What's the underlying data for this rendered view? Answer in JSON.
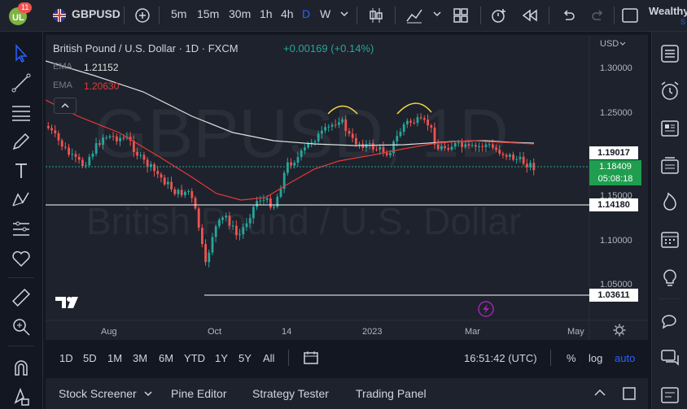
{
  "topbar": {
    "notification_count": "11",
    "symbol": "GBPUSD",
    "intervals": [
      "5m",
      "15m",
      "30m",
      "1h",
      "4h",
      "D",
      "W"
    ],
    "active_interval": "D",
    "account_label": "Wealthy",
    "account_sub": "S"
  },
  "chart": {
    "title": "British Pound / U.S. Dollar · 1D · FXCM",
    "change": "+0.00169 (+0.14%)",
    "ema1_label": "EMA",
    "ema1_value": "1.21152",
    "ema2_label": "EMA",
    "ema2_value": "1.20630",
    "watermark_symbol": "GBPUSD, 1D",
    "watermark_name": "British Pound / U.S. Dollar",
    "currency": "USD",
    "price_ticks": [
      "1.30000",
      "1.25000",
      "1.15000",
      "1.10000",
      "1.05000"
    ],
    "date_ticks": [
      "Aug",
      "Oct",
      "14",
      "2023",
      "Mar",
      "May"
    ],
    "level_labels": {
      "ema1": "1.19017",
      "current_price": "1.18409",
      "countdown": "05:08:18",
      "support_1": "1.14180",
      "support_2": "1.03611"
    },
    "colors": {
      "up": "#26a69a",
      "down": "#ef5350",
      "ema_fast": "#e0e0e0",
      "ema_slow": "#e53935",
      "current": "#1e9e4e",
      "annotation": "#f5d742"
    }
  },
  "rangebar": {
    "ranges": [
      "1D",
      "5D",
      "1M",
      "3M",
      "6M",
      "YTD",
      "1Y",
      "5Y",
      "All"
    ],
    "clock": "16:51:42 (UTC)",
    "percent": "%",
    "log": "log",
    "auto": "auto"
  },
  "panelbar": {
    "tabs": [
      "Stock Screener",
      "Pine Editor",
      "Strategy Tester",
      "Trading Panel"
    ]
  }
}
